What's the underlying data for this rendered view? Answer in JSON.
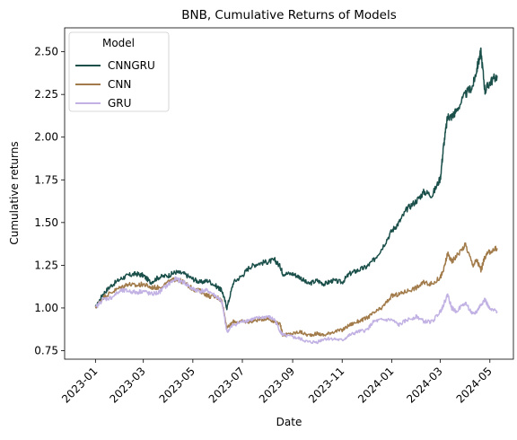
{
  "chart_data": {
    "type": "line",
    "title": "BNB, Cumulative Returns of Models",
    "xlabel": "Date",
    "ylabel": "Cumulative returns",
    "xlim": [
      "2022-11-24",
      "2024-05-30"
    ],
    "ylim": [
      0.7,
      2.64
    ],
    "x_ticks": [
      "2023-01",
      "2023-03",
      "2023-05",
      "2023-07",
      "2023-09",
      "2023-11",
      "2024-01",
      "2024-03",
      "2024-05"
    ],
    "y_ticks": [
      "0.75",
      "1.00",
      "1.25",
      "1.50",
      "1.75",
      "2.00",
      "2.25",
      "2.50"
    ],
    "grid": false,
    "legend": {
      "title": "Model",
      "placement": "top-left"
    },
    "x": [
      "2023-01-01",
      "2023-01-10",
      "2023-01-20",
      "2023-02-01",
      "2023-02-10",
      "2023-02-20",
      "2023-03-01",
      "2023-03-10",
      "2023-03-20",
      "2023-04-01",
      "2023-04-10",
      "2023-04-20",
      "2023-05-01",
      "2023-05-10",
      "2023-05-20",
      "2023-06-01",
      "2023-06-06",
      "2023-06-12",
      "2023-06-20",
      "2023-07-01",
      "2023-07-10",
      "2023-07-20",
      "2023-08-01",
      "2023-08-10",
      "2023-08-17",
      "2023-08-20",
      "2023-09-01",
      "2023-09-10",
      "2023-09-20",
      "2023-10-01",
      "2023-10-10",
      "2023-10-20",
      "2023-11-01",
      "2023-11-10",
      "2023-11-20",
      "2023-12-01",
      "2023-12-10",
      "2023-12-20",
      "2024-01-01",
      "2024-01-10",
      "2024-01-20",
      "2024-02-01",
      "2024-02-10",
      "2024-02-20",
      "2024-03-01",
      "2024-03-05",
      "2024-03-10",
      "2024-03-15",
      "2024-03-20",
      "2024-04-01",
      "2024-04-10",
      "2024-04-15",
      "2024-04-20",
      "2024-04-25",
      "2024-05-01",
      "2024-05-10"
    ],
    "series": [
      {
        "name": "CNNGRU",
        "color": "#1a4f4a",
        "values": [
          1.0,
          1.08,
          1.13,
          1.17,
          1.19,
          1.2,
          1.19,
          1.15,
          1.18,
          1.19,
          1.21,
          1.2,
          1.17,
          1.15,
          1.16,
          1.12,
          1.1,
          1.0,
          1.15,
          1.19,
          1.24,
          1.26,
          1.27,
          1.28,
          1.24,
          1.2,
          1.2,
          1.18,
          1.14,
          1.16,
          1.14,
          1.16,
          1.15,
          1.2,
          1.22,
          1.24,
          1.28,
          1.35,
          1.45,
          1.5,
          1.58,
          1.63,
          1.68,
          1.66,
          1.76,
          1.95,
          2.12,
          2.12,
          2.15,
          2.25,
          2.3,
          2.4,
          2.5,
          2.27,
          2.32,
          2.36
        ]
      },
      {
        "name": "CNN",
        "color": "#a27b4b",
        "values": [
          1.0,
          1.06,
          1.09,
          1.12,
          1.14,
          1.13,
          1.14,
          1.12,
          1.12,
          1.15,
          1.17,
          1.15,
          1.11,
          1.1,
          1.07,
          1.06,
          1.04,
          0.88,
          0.92,
          0.92,
          0.92,
          0.93,
          0.94,
          0.92,
          0.9,
          0.84,
          0.85,
          0.86,
          0.84,
          0.85,
          0.84,
          0.86,
          0.87,
          0.9,
          0.92,
          0.94,
          0.97,
          1.0,
          1.07,
          1.08,
          1.1,
          1.12,
          1.15,
          1.14,
          1.18,
          1.22,
          1.32,
          1.27,
          1.3,
          1.37,
          1.25,
          1.28,
          1.22,
          1.3,
          1.33,
          1.35
        ]
      },
      {
        "name": "GRU",
        "color": "#c2b2e4",
        "values": [
          1.0,
          1.05,
          1.06,
          1.1,
          1.1,
          1.09,
          1.1,
          1.08,
          1.09,
          1.14,
          1.17,
          1.15,
          1.11,
          1.1,
          1.1,
          1.06,
          1.03,
          0.86,
          0.9,
          0.92,
          0.93,
          0.94,
          0.95,
          0.93,
          0.86,
          0.84,
          0.83,
          0.82,
          0.8,
          0.8,
          0.82,
          0.82,
          0.81,
          0.84,
          0.86,
          0.87,
          0.92,
          0.93,
          0.93,
          0.9,
          0.93,
          0.95,
          0.92,
          0.92,
          0.98,
          1.02,
          1.08,
          1.0,
          0.98,
          1.03,
          0.96,
          0.98,
          1.02,
          1.05,
          0.99,
          0.98
        ]
      }
    ]
  }
}
